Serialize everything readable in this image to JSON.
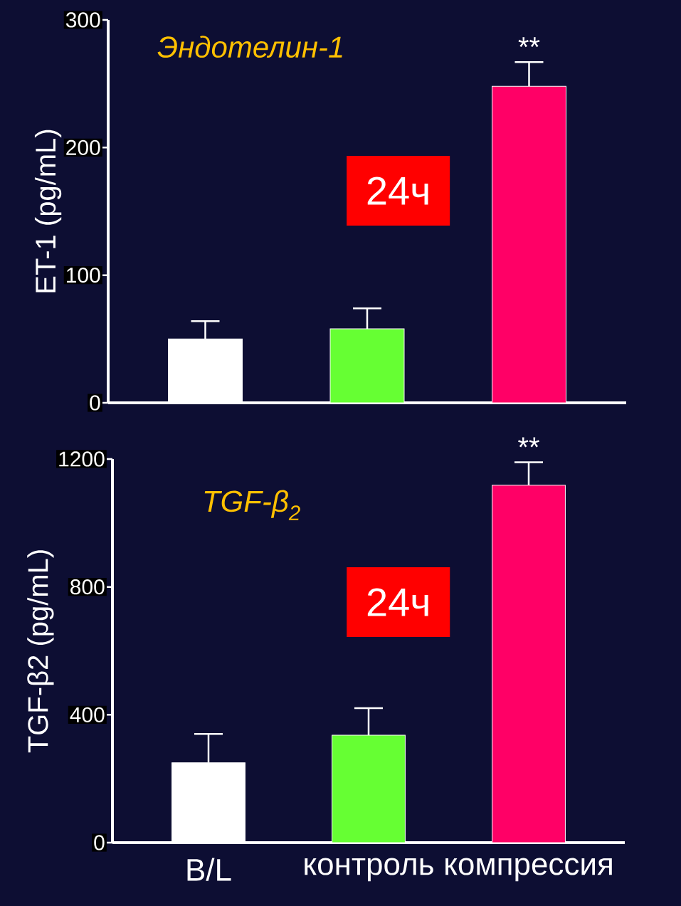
{
  "chart_data": [
    {
      "type": "bar",
      "title": "*Эндотелин-1*",
      "ylabel": "ET-1 (pg/mL)",
      "categories": [
        "B/L",
        "контроль",
        "компрессия"
      ],
      "values": [
        50,
        58,
        248
      ],
      "errors": [
        [
          50,
          64
        ],
        [
          58,
          74
        ],
        [
          248,
          267
        ]
      ],
      "colors": [
        "#ffffff",
        "#66ff33",
        "#ff0066"
      ],
      "ylim": [
        0,
        300
      ],
      "yticks": [
        0,
        100,
        200,
        300
      ],
      "tick_labels": "y",
      "grid": false,
      "annotations": [
        {
          "text": "**",
          "x": "компрессия",
          "y": 267
        },
        "24ч"
      ]
    },
    {
      "type": "bar",
      "title": "*TGF-β$_{2}$*",
      "ylabel": "TGF-β2 (pg/mL)",
      "categories": [
        "B/L",
        "контроль",
        "компрессия"
      ],
      "values": [
        250,
        336,
        1118
      ],
      "errors": [
        [
          250,
          340
        ],
        [
          336,
          421
        ],
        [
          1118,
          1190
        ]
      ],
      "colors": [
        "#ffffff",
        "#66ff33",
        "#ff0066"
      ],
      "ylim": [
        0,
        1200
      ],
      "yticks": [
        0,
        400,
        800,
        1200
      ],
      "grid": false,
      "annotations": [
        {
          "text": "**",
          "x": "компрессия",
          "y": 1190
        },
        "24ч"
      ]
    }
  ]
}
